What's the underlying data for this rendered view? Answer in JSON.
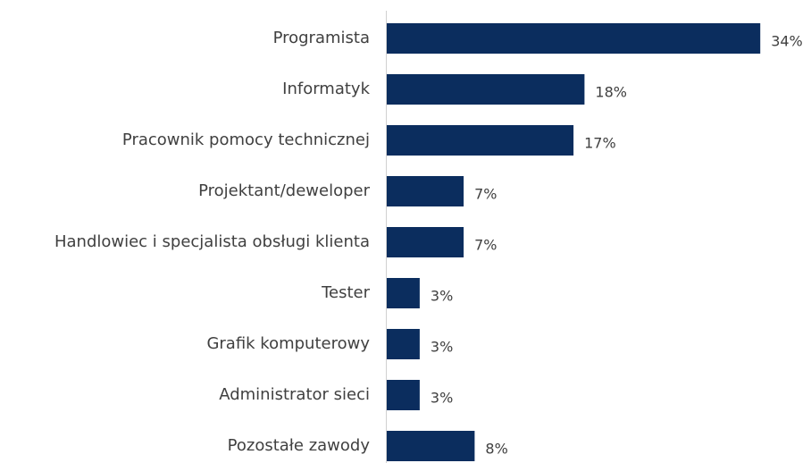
{
  "chart_data": {
    "type": "hbar",
    "categories": [
      "Programista",
      "Informatyk",
      "Pracownik pomocy technicznej",
      "Projektant/deweloper",
      "Handlowiec i specjalista obsługi klienta",
      "Tester",
      "Grafik komputerowy",
      "Administrator sieci",
      "Pozostałe zawody"
    ],
    "values": [
      34,
      18,
      17,
      7,
      7,
      3,
      3,
      3,
      8
    ],
    "value_labels": [
      "34%",
      "18%",
      "17%",
      "7%",
      "7%",
      "3%",
      "3%",
      "3%",
      "8%"
    ],
    "color": "#0b2d5e"
  }
}
